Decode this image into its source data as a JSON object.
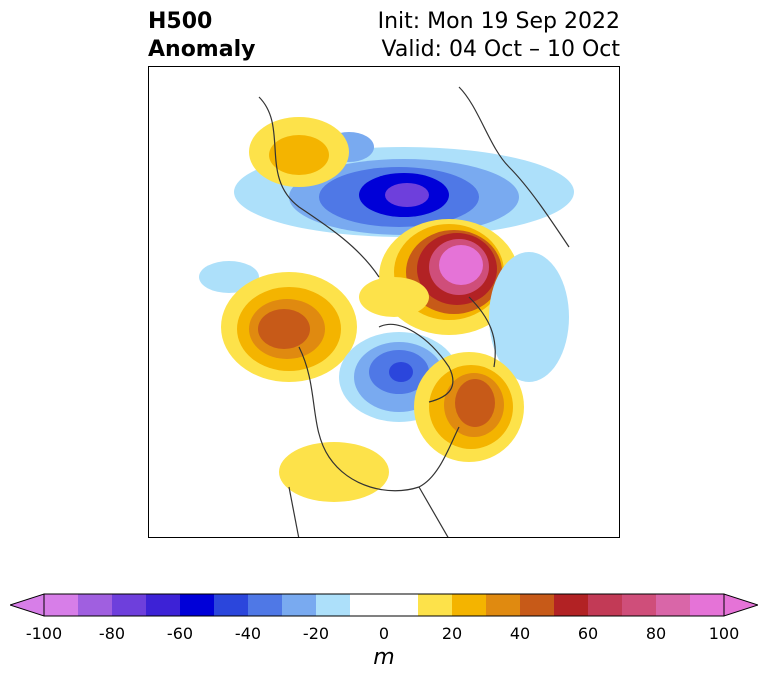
{
  "title": {
    "left_line1": "H500",
    "left_line2": "Anomaly",
    "right_line1": "Init: Mon 19 Sep 2022",
    "right_line2": "Valid: 04 Oct – 10 Oct"
  },
  "colorbar": {
    "unit": "m",
    "tick_labels": [
      "-100",
      "-80",
      "-60",
      "-40",
      "-20",
      "0",
      "20",
      "40",
      "60",
      "80",
      "100"
    ],
    "colors": [
      "#d77ee8",
      "#a05fe0",
      "#6e3fdc",
      "#3d22d6",
      "#0000d8",
      "#2b46dc",
      "#4f78e6",
      "#79aaf0",
      "#ade0fa",
      "#ffffff",
      "#ffffff",
      "#fde24a",
      "#f4b400",
      "#e08a10",
      "#c75a18",
      "#b22224",
      "#c23a56",
      "#cf4e7a",
      "#d966a8",
      "#e573d7"
    ],
    "min": -100,
    "max": 100,
    "step": 10
  }
}
